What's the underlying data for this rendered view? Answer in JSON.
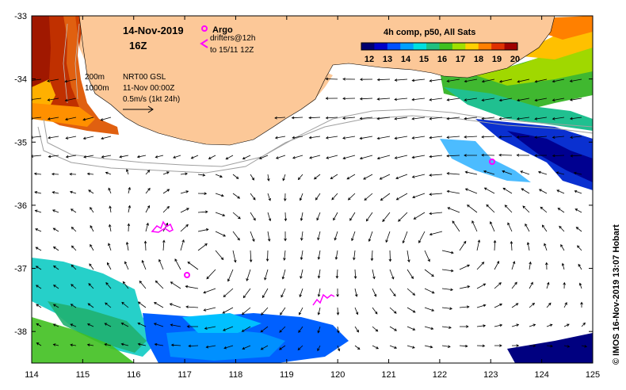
{
  "header": {
    "date": "14-Nov-2019",
    "hour": "16Z",
    "legend_argo": "Argo",
    "legend_drifters": "drifters@12h",
    "legend_drifters_range": "to 15/11 12Z",
    "product": "4h comp, p50, All Sats"
  },
  "info": {
    "contour_200": "200m",
    "contour_1000": "1000m",
    "altimetry": "NRT00 GSL",
    "altimetry_date": "11-Nov 00:00Z",
    "scale_arrow": "0.5m/s (1kt 24h)"
  },
  "colorbar": {
    "ticks": [
      "12",
      "13",
      "14",
      "15",
      "16",
      "17",
      "18",
      "19",
      "20"
    ],
    "colors": [
      "#000070",
      "#0000c8",
      "#0050ff",
      "#00a0ff",
      "#00e0e0",
      "#20c080",
      "#40c020",
      "#a0e000",
      "#ffd000",
      "#ff8000",
      "#e03000",
      "#a00000"
    ]
  },
  "axes": {
    "x_ticks": [
      "114",
      "115",
      "116",
      "117",
      "118",
      "119",
      "120",
      "121",
      "122",
      "123",
      "124",
      "125"
    ],
    "y_ticks": [
      "-33",
      "-34",
      "-35",
      "-36",
      "-37",
      "-38"
    ],
    "lon_range": [
      114,
      125
    ],
    "lat_range": [
      -38.5,
      -33
    ]
  },
  "credit": "© IMOS 16-Nov-2019 13:07 Hobart",
  "colors": {
    "land": "#fcc898",
    "argo": "#ff00ff",
    "drifter": "#ff00ff",
    "contour": "#a0a0a0"
  },
  "argo_floats": [
    {
      "lon": 123.0,
      "lat": -35.3
    },
    {
      "lon": 117.05,
      "lat": -37.1
    }
  ]
}
